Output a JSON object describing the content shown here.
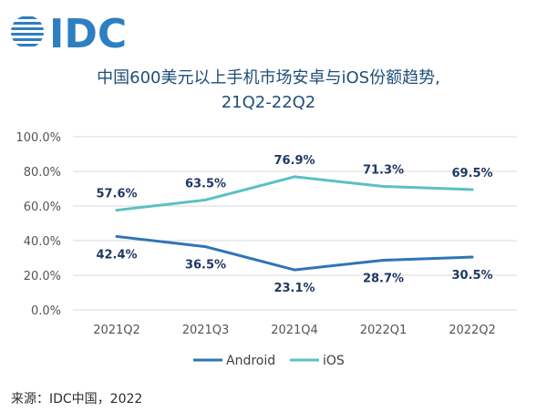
{
  "brand": {
    "logo_text": "IDC",
    "logo_color": "#2e7fc1"
  },
  "source": "来源：IDC中国，2022",
  "chart_data": {
    "type": "line",
    "title": "中国600美元以上手机市场安卓与iOS份额趋势,",
    "subtitle": "21Q2-22Q2",
    "categories": [
      "2021Q2",
      "2021Q3",
      "2021Q4",
      "2022Q1",
      "2022Q2"
    ],
    "series": [
      {
        "name": "Android",
        "values": [
          42.4,
          36.5,
          23.1,
          28.7,
          30.5
        ],
        "labels": [
          "42.4%",
          "36.5%",
          "23.1%",
          "28.7%",
          "30.5%"
        ],
        "color": "#2e75b6"
      },
      {
        "name": "iOS",
        "values": [
          57.6,
          63.5,
          76.9,
          71.3,
          69.5
        ],
        "labels": [
          "57.6%",
          "63.5%",
          "76.9%",
          "71.3%",
          "69.5%"
        ],
        "color": "#5bc0c4"
      }
    ],
    "yticks": [
      "0.0%",
      "20.0%",
      "40.0%",
      "60.0%",
      "80.0%",
      "100.0%"
    ],
    "ylim": [
      0,
      100
    ],
    "grid": true,
    "legend_position": "bottom"
  }
}
